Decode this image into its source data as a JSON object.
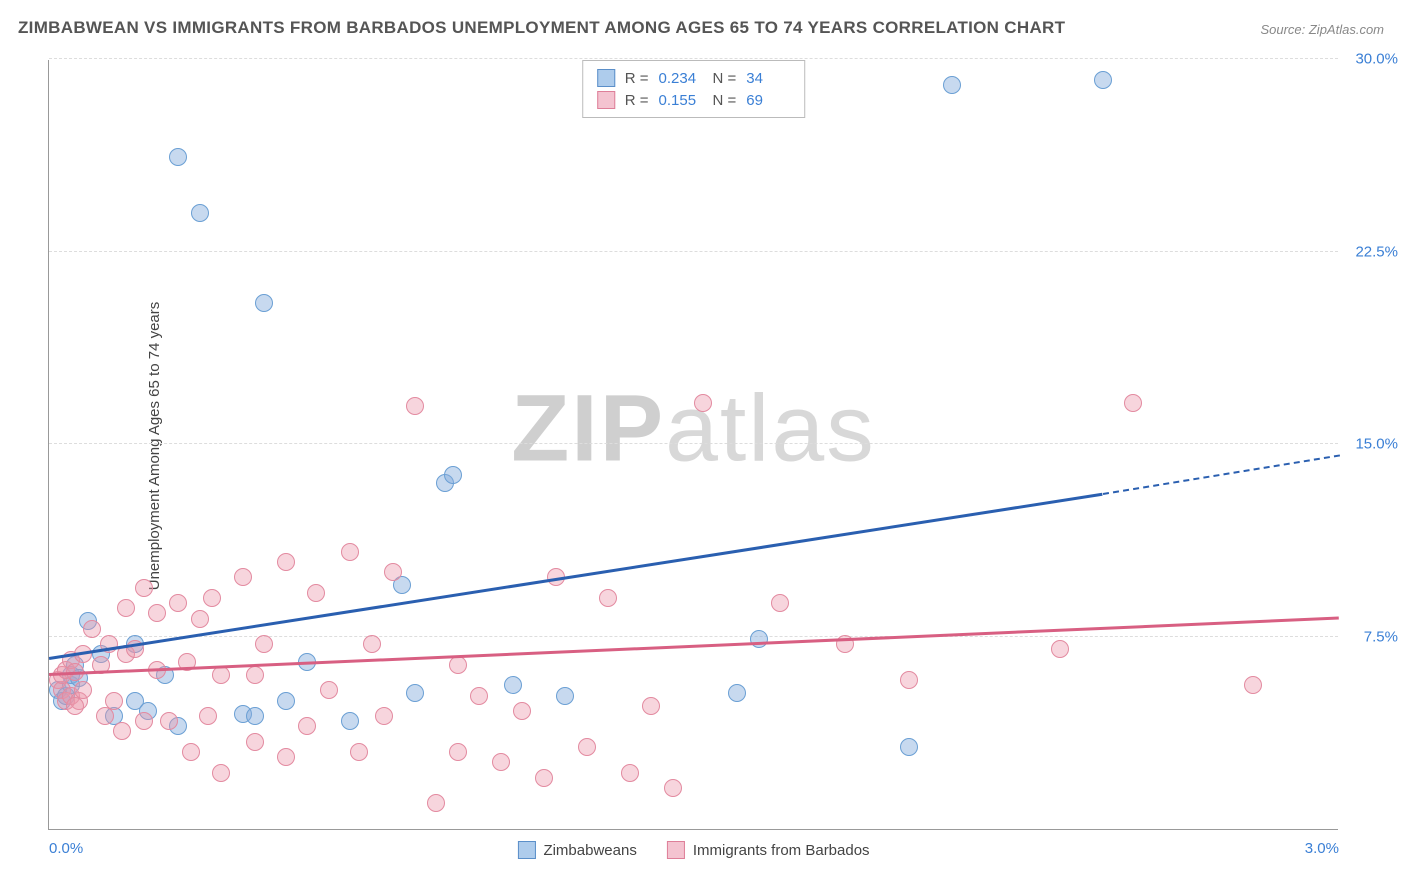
{
  "title": "ZIMBABWEAN VS IMMIGRANTS FROM BARBADOS UNEMPLOYMENT AMONG AGES 65 TO 74 YEARS CORRELATION CHART",
  "source": "Source: ZipAtlas.com",
  "y_axis_label": "Unemployment Among Ages 65 to 74 years",
  "watermark_a": "ZIP",
  "watermark_b": "atlas",
  "chart": {
    "type": "scatter",
    "xlim": [
      0.0,
      3.0
    ],
    "ylim": [
      0.0,
      30.0
    ],
    "x_ticks": [
      {
        "v": 0.0,
        "label": "0.0%"
      },
      {
        "v": 3.0,
        "label": "3.0%"
      }
    ],
    "y_ticks": [
      {
        "v": 7.5,
        "label": "7.5%"
      },
      {
        "v": 15.0,
        "label": "15.0%"
      },
      {
        "v": 22.5,
        "label": "22.5%"
      },
      {
        "v": 30.0,
        "label": "30.0%"
      }
    ],
    "grid_color": "#dddddd",
    "background_color": "#ffffff",
    "marker_radius": 9,
    "series": [
      {
        "key": "zimbabweans",
        "label": "Zimbabweans",
        "color_fill": "rgba(130,170,220,0.45)",
        "color_stroke": "#6a9fd4",
        "swatch_fill": "#aeccec",
        "swatch_stroke": "#5b8fc9",
        "R": "0.234",
        "N": "34",
        "trend": {
          "x1": 0.0,
          "y1": 6.6,
          "x2": 2.45,
          "y2": 13.0,
          "dash_to_x": 3.0,
          "dash_to_y": 14.5,
          "color": "#2a5fb0"
        },
        "points": [
          {
            "x": 0.02,
            "y": 5.4
          },
          {
            "x": 0.03,
            "y": 5.0
          },
          {
            "x": 0.04,
            "y": 5.2
          },
          {
            "x": 0.05,
            "y": 5.6
          },
          {
            "x": 0.05,
            "y": 6.0
          },
          {
            "x": 0.06,
            "y": 6.4
          },
          {
            "x": 0.07,
            "y": 5.9
          },
          {
            "x": 0.09,
            "y": 8.1
          },
          {
            "x": 0.12,
            "y": 6.8
          },
          {
            "x": 0.15,
            "y": 4.4
          },
          {
            "x": 0.2,
            "y": 5.0
          },
          {
            "x": 0.2,
            "y": 7.2
          },
          {
            "x": 0.23,
            "y": 4.6
          },
          {
            "x": 0.27,
            "y": 6.0
          },
          {
            "x": 0.3,
            "y": 4.0
          },
          {
            "x": 0.3,
            "y": 26.2
          },
          {
            "x": 0.35,
            "y": 24.0
          },
          {
            "x": 0.45,
            "y": 4.5
          },
          {
            "x": 0.48,
            "y": 4.4
          },
          {
            "x": 0.5,
            "y": 20.5
          },
          {
            "x": 0.55,
            "y": 5.0
          },
          {
            "x": 0.7,
            "y": 4.2
          },
          {
            "x": 0.82,
            "y": 9.5
          },
          {
            "x": 0.85,
            "y": 5.3
          },
          {
            "x": 0.92,
            "y": 13.5
          },
          {
            "x": 0.94,
            "y": 13.8
          },
          {
            "x": 1.08,
            "y": 5.6
          },
          {
            "x": 1.2,
            "y": 5.2
          },
          {
            "x": 1.6,
            "y": 5.3
          },
          {
            "x": 1.65,
            "y": 7.4
          },
          {
            "x": 2.0,
            "y": 3.2
          },
          {
            "x": 2.1,
            "y": 29.0
          },
          {
            "x": 2.45,
            "y": 29.2
          },
          {
            "x": 0.6,
            "y": 6.5
          }
        ]
      },
      {
        "key": "barbados",
        "label": "Immigrants from Barbados",
        "color_fill": "rgba(235,150,170,0.40)",
        "color_stroke": "#e38aa0",
        "swatch_fill": "#f4c3d0",
        "swatch_stroke": "#de7f99",
        "R": "0.155",
        "N": "69",
        "trend": {
          "x1": 0.0,
          "y1": 6.0,
          "x2": 3.0,
          "y2": 8.2,
          "color": "#d85f82"
        },
        "points": [
          {
            "x": 0.02,
            "y": 5.8
          },
          {
            "x": 0.03,
            "y": 5.4
          },
          {
            "x": 0.03,
            "y": 6.0
          },
          {
            "x": 0.04,
            "y": 6.2
          },
          {
            "x": 0.04,
            "y": 5.0
          },
          {
            "x": 0.05,
            "y": 6.6
          },
          {
            "x": 0.05,
            "y": 5.2
          },
          {
            "x": 0.06,
            "y": 6.1
          },
          {
            "x": 0.07,
            "y": 5.0
          },
          {
            "x": 0.08,
            "y": 6.8
          },
          {
            "x": 0.08,
            "y": 5.4
          },
          {
            "x": 0.1,
            "y": 7.8
          },
          {
            "x": 0.12,
            "y": 6.4
          },
          {
            "x": 0.14,
            "y": 7.2
          },
          {
            "x": 0.15,
            "y": 5.0
          },
          {
            "x": 0.17,
            "y": 3.8
          },
          {
            "x": 0.18,
            "y": 6.8
          },
          {
            "x": 0.18,
            "y": 8.6
          },
          {
            "x": 0.2,
            "y": 7.0
          },
          {
            "x": 0.22,
            "y": 4.2
          },
          {
            "x": 0.22,
            "y": 9.4
          },
          {
            "x": 0.25,
            "y": 6.2
          },
          {
            "x": 0.25,
            "y": 8.4
          },
          {
            "x": 0.28,
            "y": 4.2
          },
          {
            "x": 0.3,
            "y": 8.8
          },
          {
            "x": 0.32,
            "y": 6.5
          },
          {
            "x": 0.33,
            "y": 3.0
          },
          {
            "x": 0.35,
            "y": 8.2
          },
          {
            "x": 0.37,
            "y": 4.4
          },
          {
            "x": 0.38,
            "y": 9.0
          },
          {
            "x": 0.4,
            "y": 6.0
          },
          {
            "x": 0.4,
            "y": 2.2
          },
          {
            "x": 0.45,
            "y": 9.8
          },
          {
            "x": 0.48,
            "y": 3.4
          },
          {
            "x": 0.5,
            "y": 7.2
          },
          {
            "x": 0.55,
            "y": 10.4
          },
          {
            "x": 0.55,
            "y": 2.8
          },
          {
            "x": 0.6,
            "y": 4.0
          },
          {
            "x": 0.62,
            "y": 9.2
          },
          {
            "x": 0.65,
            "y": 5.4
          },
          {
            "x": 0.7,
            "y": 10.8
          },
          {
            "x": 0.72,
            "y": 3.0
          },
          {
            "x": 0.75,
            "y": 7.2
          },
          {
            "x": 0.78,
            "y": 4.4
          },
          {
            "x": 0.8,
            "y": 10.0
          },
          {
            "x": 0.85,
            "y": 16.5
          },
          {
            "x": 0.9,
            "y": 1.0
          },
          {
            "x": 0.95,
            "y": 6.4
          },
          {
            "x": 0.95,
            "y": 3.0
          },
          {
            "x": 1.0,
            "y": 5.2
          },
          {
            "x": 1.05,
            "y": 2.6
          },
          {
            "x": 1.1,
            "y": 4.6
          },
          {
            "x": 1.15,
            "y": 2.0
          },
          {
            "x": 1.18,
            "y": 9.8
          },
          {
            "x": 1.25,
            "y": 3.2
          },
          {
            "x": 1.3,
            "y": 9.0
          },
          {
            "x": 1.35,
            "y": 2.2
          },
          {
            "x": 1.4,
            "y": 4.8
          },
          {
            "x": 1.45,
            "y": 1.6
          },
          {
            "x": 1.52,
            "y": 16.6
          },
          {
            "x": 1.7,
            "y": 8.8
          },
          {
            "x": 1.85,
            "y": 7.2
          },
          {
            "x": 2.0,
            "y": 5.8
          },
          {
            "x": 2.35,
            "y": 7.0
          },
          {
            "x": 2.52,
            "y": 16.6
          },
          {
            "x": 2.8,
            "y": 5.6
          },
          {
            "x": 0.06,
            "y": 4.8
          },
          {
            "x": 0.13,
            "y": 4.4
          },
          {
            "x": 0.48,
            "y": 6.0
          }
        ]
      }
    ]
  },
  "legend_labels": {
    "R_prefix": "R =",
    "N_prefix": "N ="
  }
}
